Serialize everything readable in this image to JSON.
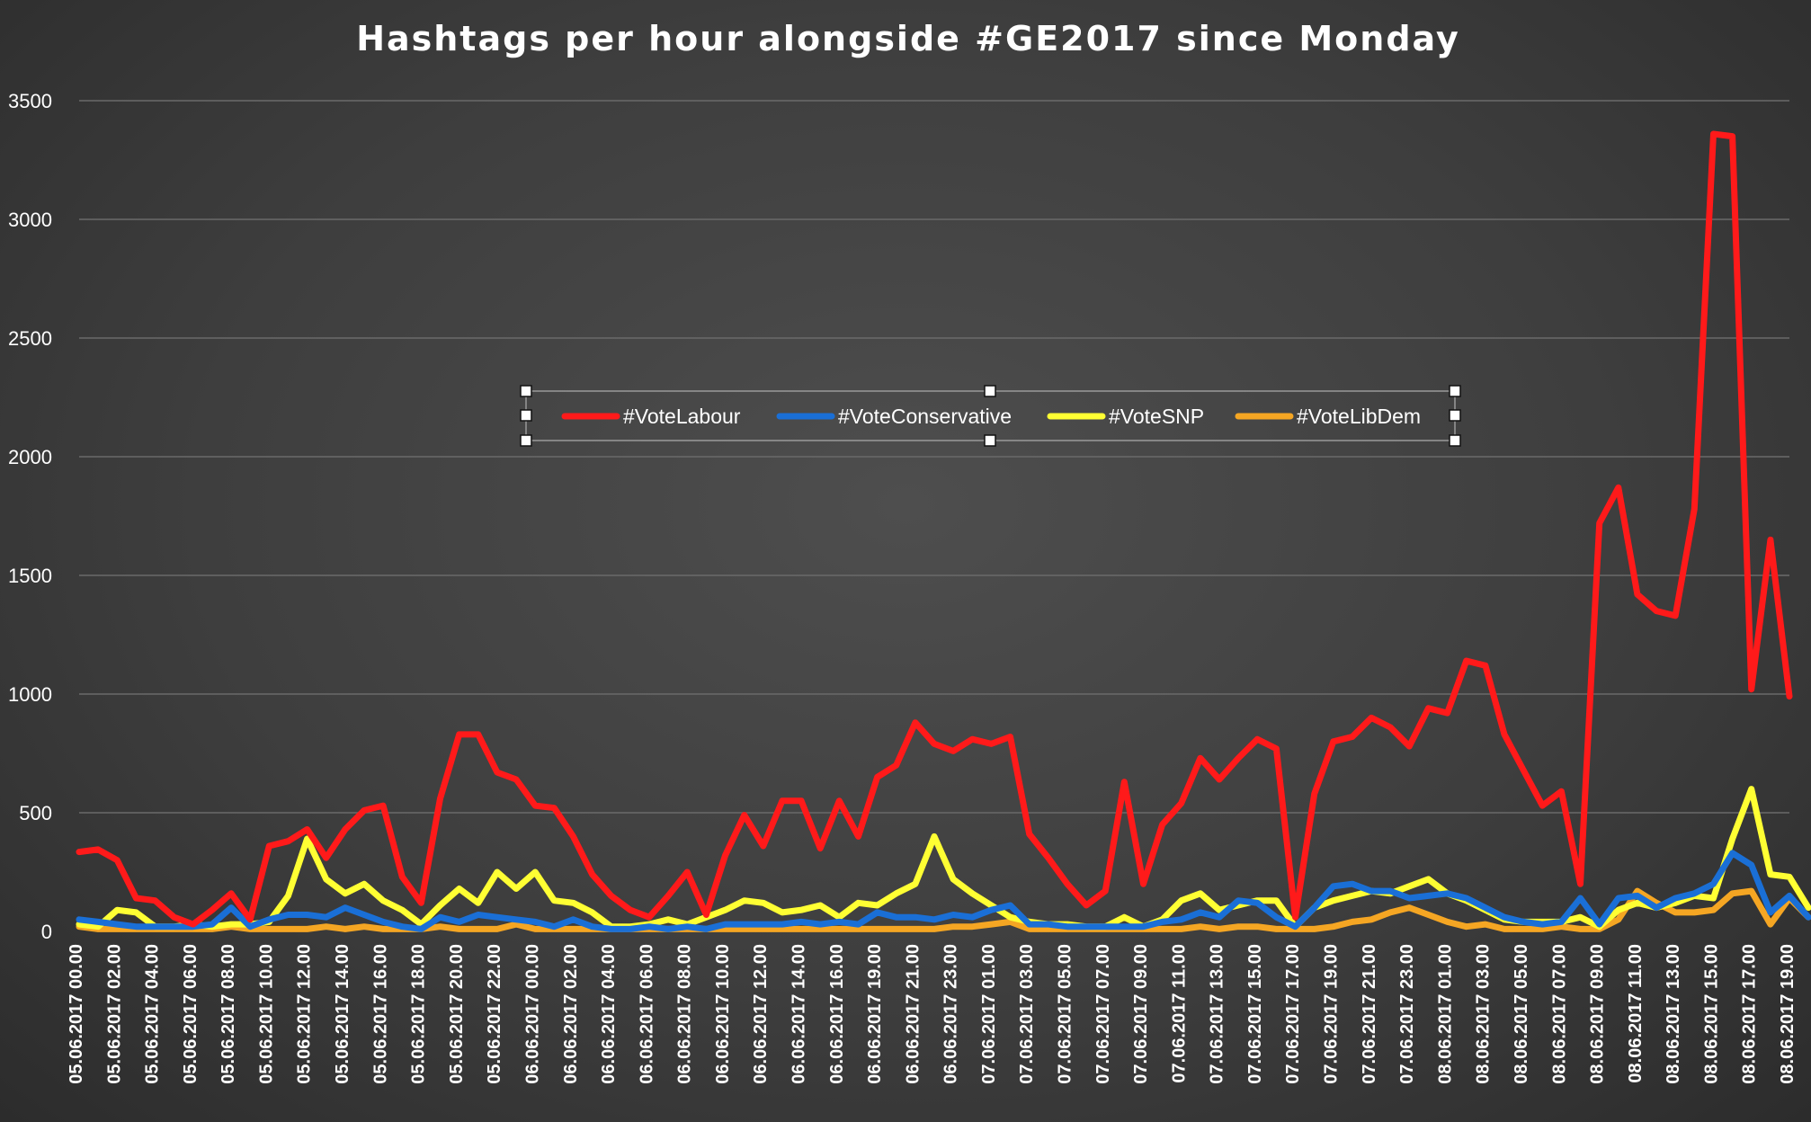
{
  "chart_data": {
    "type": "line",
    "title": "Hashtags per hour alongside #GE2017 since Monday",
    "xlabel": "",
    "ylabel": "",
    "ylim": [
      0,
      3500
    ],
    "yticks": [
      0,
      500,
      1000,
      1500,
      2000,
      2500,
      3000,
      3500
    ],
    "grid": true,
    "legend_position": "center",
    "x_tick_labels": [
      "05.06.2017 00.00",
      "05.06.2017 02.00",
      "05.06.2017 04.00",
      "05.06.2017 06.00",
      "05.06.2017 08.00",
      "05.06.2017 10.00",
      "05.06.2017 12.00",
      "05.06.2017 14.00",
      "05.06.2017 16.00",
      "05.06.2017 18.00",
      "05.06.2017 20.00",
      "05.06.2017 22.00",
      "06.06.2017 00.00",
      "06.06.2017 02.00",
      "06.06.2017 04.00",
      "06.06.2017 06.00",
      "06.06.2017 08.00",
      "06.06.2017 10.00",
      "06.06.2017 12.00",
      "06.06.2017 14.00",
      "06.06.2017 16.00",
      "06.06.2017 19.00",
      "06.06.2017 21.00",
      "06.06.2017 23.00",
      "07.06.2017 01.00",
      "07.06.2017 03.00",
      "07.06.2017 05.00",
      "07.06.2017 07.00",
      "07.06.2017 09.00",
      "07.06.2017 11.00",
      "07.06.2017 13.00",
      "07.06.2017 15.00",
      "07.06.2017 17.00",
      "07.06.2017 19.00",
      "07.06.2017 21.00",
      "07.06.2017 23.00",
      "08.06.2017 01.00",
      "08.06.2017 03.00",
      "08.06.2017 05.00",
      "08.06.2017 07.00",
      "08.06.2017 09.00",
      "08.06.2017 11.00",
      "08.06.2017 13.00",
      "08.06.2017 15.00",
      "08.06.2017 17.00",
      "08.06.2017 19.00"
    ],
    "series": [
      {
        "name": "#VoteLabour",
        "color": "#ff1a1a",
        "values": [
          335,
          345,
          300,
          140,
          130,
          60,
          30,
          90,
          160,
          50,
          360,
          380,
          430,
          310,
          430,
          510,
          530,
          230,
          120,
          560,
          830,
          830,
          670,
          640,
          530,
          520,
          400,
          240,
          150,
          90,
          60,
          150,
          250,
          70,
          320,
          490,
          360,
          550,
          550,
          350,
          550,
          400,
          650,
          700,
          880,
          790,
          760,
          810,
          790,
          820,
          410,
          310,
          200,
          110,
          170,
          630,
          200,
          450,
          540,
          730,
          640,
          730,
          810,
          770,
          60,
          580,
          800,
          820,
          900,
          860,
          780,
          940,
          920,
          1140,
          1120,
          830,
          680,
          530,
          590,
          200,
          1720,
          1870,
          1420,
          1350,
          1330,
          1780,
          3360,
          3350,
          1020,
          1650,
          990
        ]
      },
      {
        "name": "#VoteConservative",
        "color": "#1a6fd6",
        "values": [
          50,
          40,
          30,
          20,
          20,
          20,
          20,
          30,
          100,
          20,
          50,
          70,
          70,
          60,
          100,
          70,
          40,
          20,
          10,
          60,
          40,
          70,
          60,
          50,
          40,
          20,
          50,
          20,
          10,
          10,
          20,
          10,
          20,
          10,
          30,
          30,
          30,
          30,
          40,
          30,
          40,
          30,
          80,
          60,
          60,
          50,
          70,
          60,
          90,
          110,
          30,
          30,
          20,
          20,
          20,
          20,
          20,
          40,
          50,
          80,
          60,
          130,
          120,
          60,
          20,
          100,
          190,
          200,
          170,
          170,
          140,
          150,
          160,
          140,
          100,
          60,
          40,
          30,
          40,
          140,
          30,
          140,
          150,
          100,
          140,
          160,
          200,
          330,
          280,
          80,
          150,
          60
        ]
      },
      {
        "name": "#VoteSNP",
        "color": "#ffff33",
        "values": [
          30,
          20,
          90,
          80,
          20,
          20,
          30,
          20,
          30,
          30,
          40,
          150,
          390,
          220,
          160,
          200,
          130,
          90,
          30,
          110,
          180,
          120,
          250,
          180,
          250,
          130,
          120,
          80,
          20,
          20,
          30,
          50,
          30,
          60,
          90,
          130,
          120,
          80,
          90,
          110,
          60,
          120,
          110,
          160,
          200,
          400,
          220,
          160,
          110,
          60,
          40,
          30,
          30,
          20,
          20,
          60,
          20,
          50,
          130,
          160,
          90,
          110,
          130,
          130,
          20,
          100,
          130,
          150,
          170,
          160,
          190,
          220,
          160,
          130,
          90,
          50,
          40,
          40,
          40,
          60,
          20,
          90,
          120,
          100,
          120,
          150,
          140,
          390,
          600,
          240,
          230,
          100
        ]
      },
      {
        "name": "#VoteLibDem",
        "color": "#f5a623",
        "values": [
          20,
          10,
          10,
          10,
          10,
          10,
          10,
          10,
          20,
          10,
          10,
          10,
          10,
          20,
          10,
          20,
          10,
          10,
          10,
          20,
          10,
          10,
          10,
          30,
          10,
          10,
          10,
          10,
          10,
          10,
          10,
          10,
          10,
          10,
          10,
          10,
          10,
          10,
          10,
          10,
          10,
          10,
          10,
          10,
          10,
          10,
          20,
          20,
          30,
          40,
          10,
          10,
          10,
          10,
          10,
          10,
          10,
          10,
          10,
          20,
          10,
          20,
          20,
          10,
          10,
          10,
          20,
          40,
          50,
          80,
          100,
          70,
          40,
          20,
          30,
          10,
          10,
          10,
          20,
          10,
          10,
          50,
          170,
          120,
          80,
          80,
          90,
          160,
          170,
          30,
          140,
          60
        ]
      }
    ]
  }
}
